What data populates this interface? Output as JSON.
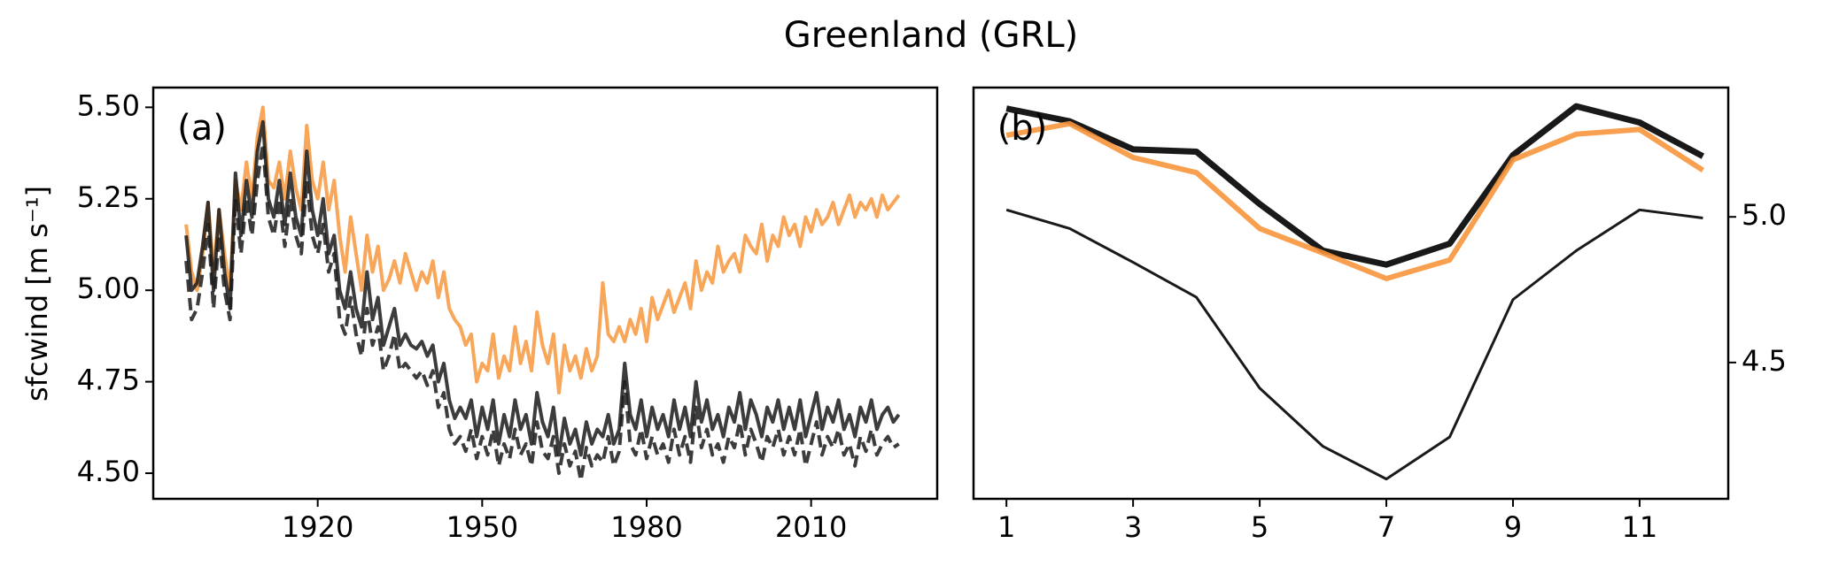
{
  "title": "Greenland (GRL)",
  "chart_data": [
    {
      "type": "line",
      "panel_label": "(a)",
      "ylabel": "sfcwind [m s⁻¹]",
      "x": [
        1896,
        1897,
        1898,
        1899,
        1900,
        1901,
        1902,
        1903,
        1904,
        1905,
        1906,
        1907,
        1908,
        1909,
        1910,
        1911,
        1912,
        1913,
        1914,
        1915,
        1916,
        1917,
        1918,
        1919,
        1920,
        1921,
        1922,
        1923,
        1924,
        1925,
        1926,
        1927,
        1928,
        1929,
        1930,
        1931,
        1932,
        1933,
        1934,
        1935,
        1936,
        1937,
        1938,
        1939,
        1940,
        1941,
        1942,
        1943,
        1944,
        1945,
        1946,
        1947,
        1948,
        1949,
        1950,
        1951,
        1952,
        1953,
        1954,
        1955,
        1956,
        1957,
        1958,
        1959,
        1960,
        1961,
        1962,
        1963,
        1964,
        1965,
        1966,
        1967,
        1968,
        1969,
        1970,
        1971,
        1972,
        1973,
        1974,
        1975,
        1976,
        1977,
        1978,
        1979,
        1980,
        1981,
        1982,
        1983,
        1984,
        1985,
        1986,
        1987,
        1988,
        1989,
        1990,
        1991,
        1992,
        1993,
        1994,
        1995,
        1996,
        1997,
        1998,
        1999,
        2000,
        2001,
        2002,
        2003,
        2004,
        2005,
        2006,
        2007,
        2008,
        2009,
        2010,
        2011,
        2012,
        2013,
        2014,
        2015,
        2016,
        2017,
        2018,
        2019,
        2020,
        2021,
        2022,
        2023,
        2024,
        2025,
        2026
      ],
      "series": [
        {
          "color": "#f7963c",
          "linestyle": "solid",
          "values": [
            5.18,
            5.05,
            5.0,
            5.1,
            5.24,
            5.05,
            5.22,
            5.1,
            5.0,
            5.3,
            5.22,
            5.35,
            5.25,
            5.42,
            5.5,
            5.3,
            5.28,
            5.35,
            5.25,
            5.38,
            5.28,
            5.22,
            5.45,
            5.3,
            5.25,
            5.35,
            5.22,
            5.3,
            5.15,
            5.05,
            5.2,
            5.1,
            5.0,
            5.15,
            5.05,
            5.12,
            5.0,
            5.03,
            5.08,
            5.02,
            5.1,
            5.05,
            5.0,
            5.05,
            5.02,
            5.08,
            4.98,
            5.05,
            4.95,
            4.92,
            4.9,
            4.85,
            4.88,
            4.75,
            4.8,
            4.78,
            4.88,
            4.76,
            4.82,
            4.78,
            4.9,
            4.8,
            4.86,
            4.78,
            4.94,
            4.85,
            4.8,
            4.88,
            4.72,
            4.85,
            4.78,
            4.82,
            4.76,
            4.84,
            4.78,
            4.82,
            5.02,
            4.88,
            4.86,
            4.9,
            4.86,
            4.92,
            4.88,
            4.95,
            4.86,
            4.98,
            4.92,
            4.96,
            5.0,
            4.94,
            4.98,
            5.02,
            4.95,
            5.08,
            5.0,
            5.05,
            5.02,
            5.12,
            5.05,
            5.08,
            5.1,
            5.05,
            5.15,
            5.12,
            5.1,
            5.18,
            5.08,
            5.15,
            5.12,
            5.2,
            5.15,
            5.18,
            5.12,
            5.2,
            5.16,
            5.22,
            5.18,
            5.2,
            5.24,
            5.18,
            5.22,
            5.26,
            5.2,
            5.24,
            5.22,
            5.25,
            5.2,
            5.26,
            5.22,
            5.24,
            5.26
          ]
        },
        {
          "color": "#1a1a1a",
          "linestyle": "solid",
          "values": [
            5.15,
            5.0,
            5.02,
            5.12,
            5.24,
            5.0,
            5.22,
            5.05,
            4.95,
            5.32,
            5.15,
            5.3,
            5.2,
            5.38,
            5.46,
            5.25,
            5.2,
            5.3,
            5.18,
            5.32,
            5.2,
            5.15,
            5.38,
            5.22,
            5.15,
            5.25,
            5.1,
            5.15,
            5.0,
            4.95,
            5.05,
            4.95,
            4.9,
            5.05,
            4.92,
            4.98,
            4.85,
            4.9,
            4.95,
            4.85,
            4.88,
            4.85,
            4.84,
            4.86,
            4.82,
            4.85,
            4.75,
            4.8,
            4.7,
            4.65,
            4.68,
            4.65,
            4.7,
            4.6,
            4.68,
            4.62,
            4.7,
            4.58,
            4.66,
            4.6,
            4.7,
            4.62,
            4.66,
            4.58,
            4.72,
            4.64,
            4.6,
            4.68,
            4.55,
            4.65,
            4.58,
            4.62,
            4.55,
            4.64,
            4.58,
            4.62,
            4.6,
            4.66,
            4.58,
            4.62,
            4.8,
            4.66,
            4.62,
            4.7,
            4.6,
            4.68,
            4.62,
            4.66,
            4.6,
            4.7,
            4.62,
            4.68,
            4.6,
            4.75,
            4.64,
            4.7,
            4.62,
            4.66,
            4.6,
            4.68,
            4.64,
            4.72,
            4.62,
            4.7,
            4.66,
            4.6,
            4.68,
            4.64,
            4.7,
            4.62,
            4.68,
            4.62,
            4.7,
            4.6,
            4.66,
            4.72,
            4.62,
            4.68,
            4.64,
            4.7,
            4.62,
            4.66,
            4.6,
            4.68,
            4.64,
            4.7,
            4.62,
            4.66,
            4.68,
            4.64,
            4.66
          ]
        },
        {
          "color": "#1a1a1a",
          "linestyle": "dashed",
          "values": [
            5.08,
            4.92,
            4.95,
            5.05,
            5.18,
            4.95,
            5.15,
            5.0,
            4.92,
            5.25,
            5.1,
            5.25,
            5.15,
            5.3,
            5.4,
            5.2,
            5.15,
            5.25,
            5.12,
            5.25,
            5.15,
            5.1,
            5.3,
            5.15,
            5.1,
            5.18,
            5.05,
            5.1,
            4.92,
            4.88,
            4.98,
            4.88,
            4.82,
            4.95,
            4.85,
            4.9,
            4.78,
            4.82,
            4.88,
            4.78,
            4.8,
            4.78,
            4.76,
            4.78,
            4.74,
            4.78,
            4.68,
            4.72,
            4.62,
            4.58,
            4.6,
            4.56,
            4.62,
            4.54,
            4.6,
            4.55,
            4.62,
            4.52,
            4.58,
            4.54,
            4.62,
            4.55,
            4.58,
            4.52,
            4.64,
            4.56,
            4.54,
            4.6,
            4.5,
            4.58,
            4.52,
            4.56,
            4.48,
            4.57,
            4.52,
            4.55,
            4.53,
            4.6,
            4.52,
            4.56,
            4.75,
            4.58,
            4.55,
            4.62,
            4.54,
            4.6,
            4.55,
            4.58,
            4.53,
            4.62,
            4.55,
            4.6,
            4.53,
            4.68,
            4.57,
            4.62,
            4.55,
            4.58,
            4.53,
            4.6,
            4.57,
            4.64,
            4.55,
            4.62,
            4.58,
            4.53,
            4.6,
            4.57,
            4.62,
            4.55,
            4.6,
            4.55,
            4.62,
            4.52,
            4.58,
            4.64,
            4.55,
            4.6,
            4.57,
            4.62,
            4.55,
            4.58,
            4.52,
            4.6,
            4.56,
            4.62,
            4.55,
            4.58,
            4.6,
            4.57,
            4.58
          ]
        }
      ],
      "xlim": [
        1890,
        2033
      ],
      "xticks": [
        1920,
        1950,
        1980,
        2010
      ],
      "ylim": [
        4.43,
        5.554
      ],
      "yticks": [
        {
          "value": 4.5,
          "label": "4.50"
        },
        {
          "value": 4.75,
          "label": "4.75"
        },
        {
          "value": 5.0,
          "label": "5.00"
        },
        {
          "value": 5.25,
          "label": "5.25"
        },
        {
          "value": 5.5,
          "label": "5.50"
        }
      ],
      "y_axis_side": "left"
    },
    {
      "type": "line",
      "panel_label": "(b)",
      "x": [
        1,
        2,
        3,
        4,
        5,
        6,
        7,
        8,
        9,
        10,
        11,
        12
      ],
      "series": [
        {
          "color": "#000000",
          "linestyle": "solid",
          "values": [
            5.372,
            5.328,
            5.232,
            5.224,
            5.044,
            4.884,
            4.836,
            4.908,
            5.212,
            5.38,
            5.324,
            5.208
          ]
        },
        {
          "color": "#f7963c",
          "linestyle": "solid",
          "values": [
            5.28,
            5.32,
            5.204,
            5.152,
            4.96,
            4.876,
            4.788,
            4.852,
            5.196,
            5.284,
            5.3,
            5.16
          ]
        },
        {
          "color": "#000000",
          "linestyle": "solid",
          "values": [
            5.024,
            4.96,
            4.844,
            4.724,
            4.412,
            4.212,
            4.1,
            4.244,
            4.716,
            4.884,
            5.024,
            4.996
          ]
        }
      ],
      "xlim": [
        0.48,
        12.4
      ],
      "xticks": [
        1,
        3,
        5,
        7,
        9,
        11
      ],
      "ylim": [
        4.032,
        5.444
      ],
      "yticks": [
        4.5,
        {
          "value": 5.0,
          "label": "5.0"
        }
      ],
      "y_axis_side": "right"
    }
  ]
}
